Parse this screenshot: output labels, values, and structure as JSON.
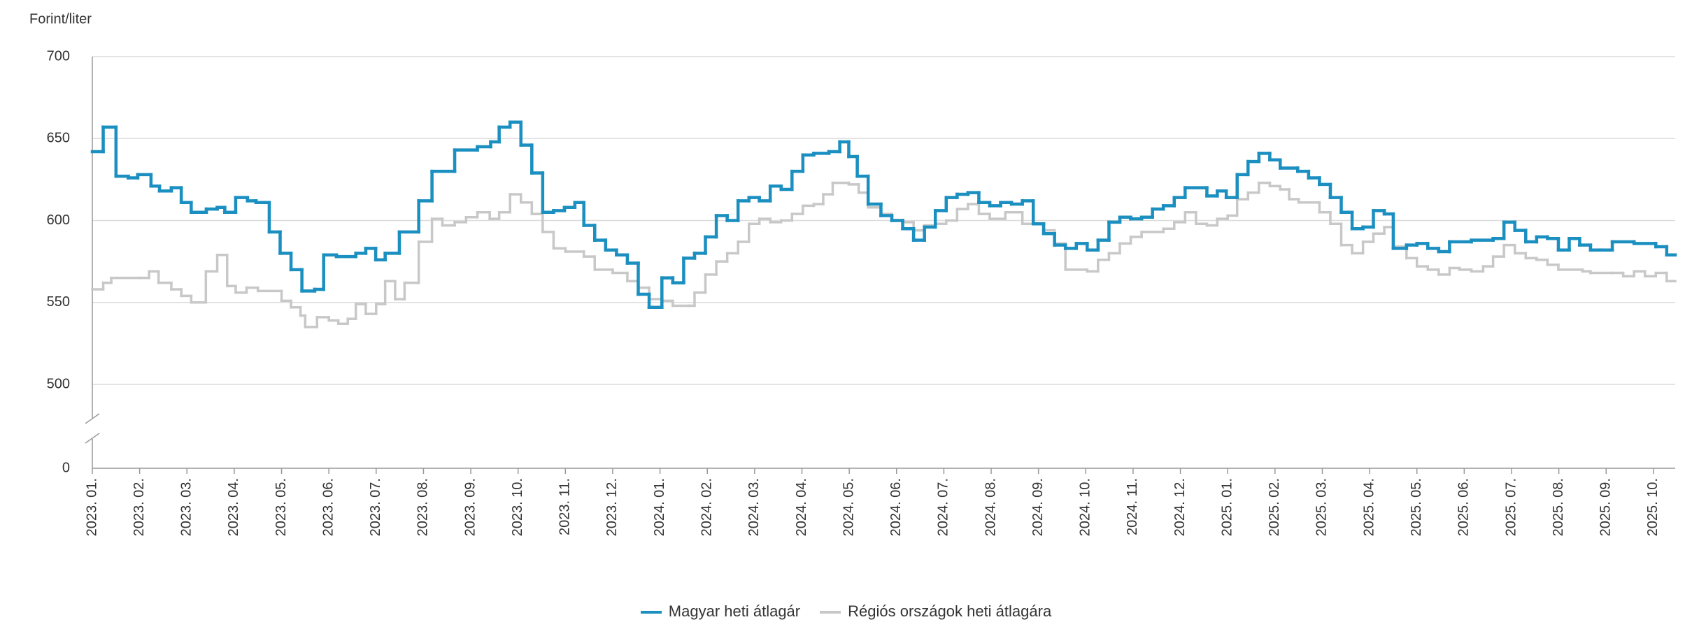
{
  "chart_data": {
    "type": "step-line",
    "y_axis_label": "Forint/liter",
    "ylim": [
      0,
      700
    ],
    "yticks": [
      0,
      500,
      550,
      600,
      650,
      700
    ],
    "axis_break": [
      0,
      500
    ],
    "grid": true,
    "xlim": [
      0,
      33.46
    ],
    "xticks": [
      {
        "value": 0,
        "label": "2023. 01."
      },
      {
        "value": 1,
        "label": "2023. 02."
      },
      {
        "value": 2,
        "label": "2023. 03."
      },
      {
        "value": 3,
        "label": "2023. 04."
      },
      {
        "value": 4,
        "label": "2023. 05."
      },
      {
        "value": 5,
        "label": "2023. 06."
      },
      {
        "value": 6,
        "label": "2023. 07."
      },
      {
        "value": 7,
        "label": "2023. 08."
      },
      {
        "value": 8,
        "label": "2023. 09."
      },
      {
        "value": 9,
        "label": "2023. 10."
      },
      {
        "value": 10,
        "label": "2023. 11."
      },
      {
        "value": 11,
        "label": "2023. 12."
      },
      {
        "value": 12,
        "label": "2024. 01."
      },
      {
        "value": 13,
        "label": "2024. 02."
      },
      {
        "value": 14,
        "label": "2024. 03."
      },
      {
        "value": 15,
        "label": "2024. 04."
      },
      {
        "value": 16,
        "label": "2024. 05."
      },
      {
        "value": 17,
        "label": "2024. 06."
      },
      {
        "value": 18,
        "label": "2024. 07."
      },
      {
        "value": 19,
        "label": "2024. 08."
      },
      {
        "value": 20,
        "label": "2024. 09."
      },
      {
        "value": 21,
        "label": "2024. 10."
      },
      {
        "value": 22,
        "label": "2024. 11."
      },
      {
        "value": 23,
        "label": "2024. 12."
      },
      {
        "value": 24,
        "label": "2025. 01."
      },
      {
        "value": 25,
        "label": "2025. 02."
      },
      {
        "value": 26,
        "label": "2025. 03."
      },
      {
        "value": 27,
        "label": "2025. 04."
      },
      {
        "value": 28,
        "label": "2025. 05."
      },
      {
        "value": 29,
        "label": "2025. 06."
      },
      {
        "value": 30,
        "label": "2025. 07."
      },
      {
        "value": 31,
        "label": "2025. 08."
      },
      {
        "value": 32,
        "label": "2025. 09."
      },
      {
        "value": 33,
        "label": "2025. 10."
      }
    ],
    "series": [
      {
        "name": "Régiós országok heti átlagára",
        "color": "#c8c8c8",
        "x": [
          0,
          0.23,
          0.4,
          1.0,
          1.2,
          1.4,
          1.67,
          1.88,
          2.09,
          2.4,
          2.64,
          2.85,
          3.03,
          3.26,
          3.5,
          4.0,
          4.2,
          4.4,
          4.5,
          4.75,
          5.0,
          5.2,
          5.4,
          5.57,
          5.78,
          6.0,
          6.19,
          6.4,
          6.6,
          6.9,
          7.18,
          7.4,
          7.66,
          7.9,
          8.14,
          8.4,
          8.6,
          8.83,
          9.06,
          9.29,
          9.52,
          9.75,
          10.0,
          10.39,
          10.62,
          11.0,
          11.31,
          11.54,
          11.77,
          12.04,
          12.27,
          12.6,
          12.73,
          12.96,
          13.19,
          13.42,
          13.65,
          13.88,
          14.1,
          14.33,
          14.56,
          14.79,
          15.02,
          15.25,
          15.45,
          15.65,
          15.99,
          16.2,
          16.4,
          16.67,
          16.9,
          17.13,
          17.36,
          17.59,
          17.82,
          18.05,
          18.28,
          18.51,
          18.74,
          18.97,
          19.3,
          19.66,
          20.1,
          20.34,
          20.57,
          21.03,
          21.26,
          21.49,
          21.72,
          21.95,
          22.18,
          22.64,
          22.87,
          23.1,
          23.33,
          23.56,
          23.78,
          24.0,
          24.2,
          24.43,
          24.66,
          24.89,
          25.11,
          25.3,
          25.5,
          25.94,
          26.17,
          26.4,
          26.63,
          26.86,
          27.08,
          27.31,
          27.5,
          27.78,
          28.0,
          28.23,
          28.46,
          28.69,
          28.9,
          29.15,
          29.4,
          29.61,
          29.84,
          30.07,
          30.3,
          30.53,
          30.76,
          30.99,
          31.5,
          31.67,
          32.13,
          32.36,
          32.59,
          32.82,
          33.05,
          33.28
        ],
        "values": [
          558,
          562,
          565,
          565,
          569,
          562,
          558,
          554,
          550,
          569,
          579,
          560,
          556,
          559,
          557,
          551,
          547,
          542,
          535,
          541,
          539,
          537,
          540,
          549,
          543,
          549,
          563,
          552,
          562,
          587,
          601,
          597,
          599,
          602,
          605,
          601,
          605,
          616,
          611,
          604,
          593,
          583,
          581,
          578,
          570,
          568,
          563,
          559,
          552,
          551,
          548,
          548,
          556,
          567,
          575,
          580,
          587,
          598,
          601,
          599,
          600,
          604,
          609,
          610,
          616,
          623,
          622,
          617,
          608,
          604,
          600,
          599,
          594,
          597,
          598,
          600,
          607,
          610,
          604,
          601,
          605,
          598,
          594,
          586,
          570,
          569,
          576,
          580,
          586,
          590,
          593,
          595,
          599,
          605,
          598,
          597,
          601,
          603,
          613,
          617,
          623,
          621,
          619,
          613,
          611,
          605,
          598,
          585,
          580,
          587,
          592,
          596,
          584,
          577,
          572,
          570,
          567,
          571,
          570,
          569,
          572,
          578,
          585,
          580,
          577,
          576,
          573,
          570,
          569,
          568,
          568,
          566,
          569,
          566,
          568,
          563
        ]
      },
      {
        "name": "Magyar heti átlagár",
        "color": "#1a8fc0",
        "x": [
          0,
          0.23,
          0.5,
          0.76,
          0.96,
          1.24,
          1.42,
          1.67,
          1.88,
          2.09,
          2.41,
          2.64,
          2.8,
          3.03,
          3.28,
          3.46,
          3.74,
          3.97,
          4.2,
          4.43,
          4.7,
          4.89,
          5.16,
          5.57,
          5.78,
          5.99,
          6.19,
          6.49,
          6.9,
          7.18,
          7.66,
          8.14,
          8.42,
          8.6,
          8.83,
          9.06,
          9.29,
          9.52,
          9.75,
          9.98,
          10.2,
          10.39,
          10.62,
          10.85,
          11.08,
          11.31,
          11.54,
          11.77,
          12.04,
          12.27,
          12.5,
          12.73,
          12.96,
          13.19,
          13.42,
          13.65,
          13.88,
          14.1,
          14.33,
          14.56,
          14.79,
          15.02,
          15.25,
          15.57,
          15.8,
          15.99,
          16.17,
          16.4,
          16.67,
          16.9,
          17.13,
          17.36,
          17.59,
          17.82,
          18.05,
          18.28,
          18.51,
          18.74,
          18.97,
          19.2,
          19.43,
          19.66,
          19.89,
          20.11,
          20.34,
          20.57,
          20.8,
          21.03,
          21.26,
          21.49,
          21.72,
          21.95,
          22.18,
          22.41,
          22.64,
          22.87,
          23.1,
          23.56,
          23.78,
          23.97,
          24.2,
          24.43,
          24.66,
          24.89,
          25.11,
          25.48,
          25.71,
          25.94,
          26.17,
          26.4,
          26.63,
          26.86,
          27.08,
          27.31,
          27.5,
          27.78,
          28.0,
          28.23,
          28.46,
          28.69,
          29.15,
          29.61,
          29.84,
          30.07,
          30.3,
          30.53,
          30.76,
          30.99,
          31.22,
          31.44,
          31.67,
          31.9,
          32.13,
          32.59,
          33.05,
          33.28
        ],
        "values": [
          642,
          657,
          627,
          626,
          628,
          621,
          618,
          620,
          611,
          605,
          607,
          608,
          605,
          614,
          612,
          611,
          593,
          580,
          570,
          557,
          558,
          579,
          578,
          580,
          583,
          576,
          580,
          593,
          612,
          630,
          643,
          645,
          648,
          657,
          660,
          646,
          629,
          605,
          606,
          608,
          611,
          597,
          588,
          582,
          579,
          574,
          555,
          547,
          565,
          562,
          577,
          580,
          590,
          603,
          600,
          612,
          614,
          612,
          621,
          619,
          630,
          640,
          641,
          642,
          648,
          639,
          627,
          610,
          603,
          600,
          595,
          588,
          596,
          606,
          614,
          616,
          617,
          611,
          609,
          611,
          610,
          612,
          598,
          592,
          585,
          583,
          586,
          582,
          588,
          599,
          602,
          601,
          602,
          607,
          609,
          614,
          620,
          615,
          618,
          614,
          628,
          636,
          641,
          637,
          632,
          630,
          626,
          622,
          614,
          605,
          595,
          596,
          606,
          604,
          583,
          585,
          586,
          583,
          581,
          587,
          588,
          589,
          599,
          594,
          587,
          590,
          589,
          582,
          589,
          585,
          582,
          582,
          587,
          586,
          584,
          579
        ]
      }
    ]
  }
}
